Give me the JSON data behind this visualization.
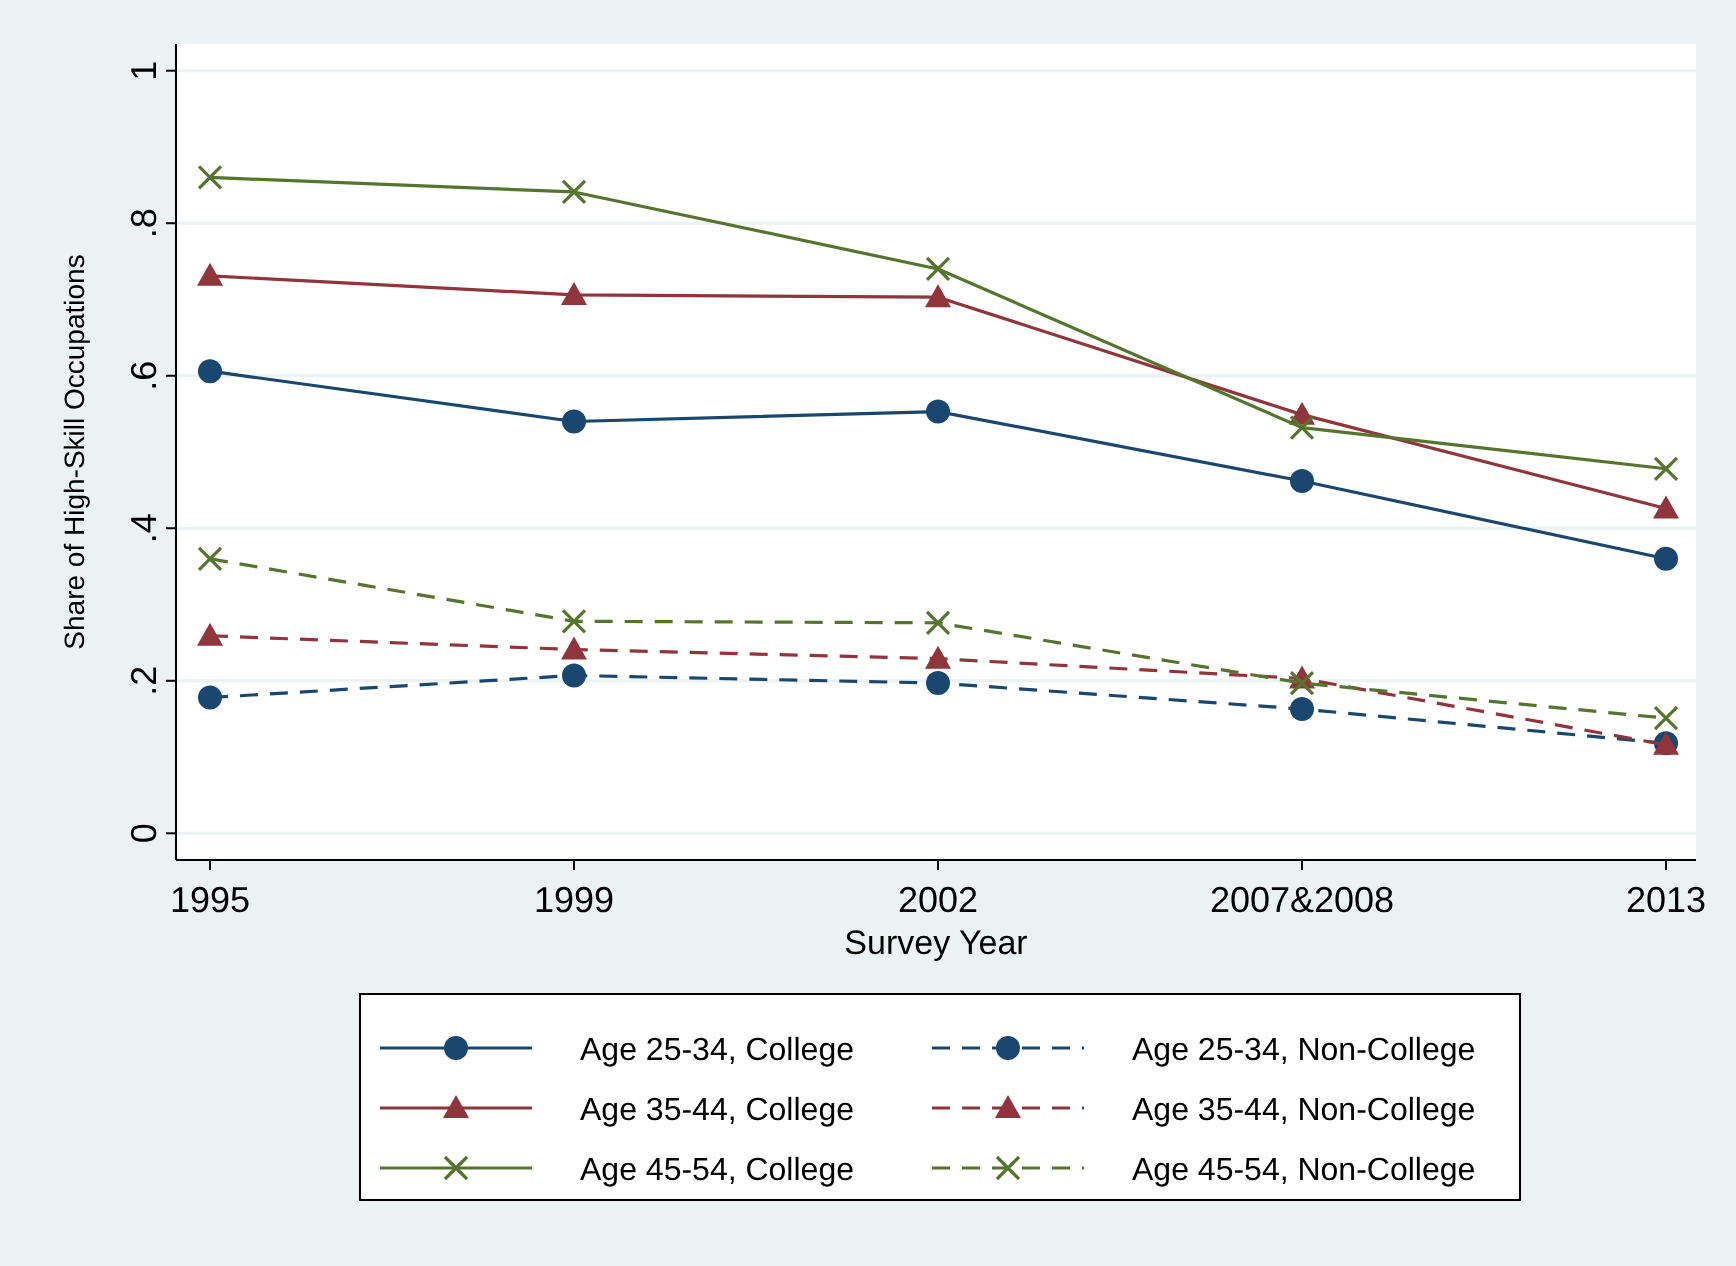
{
  "chart_data": {
    "type": "line",
    "xlabel": "Survey Year",
    "ylabel": "Share of High-Skill Occupations",
    "categories": [
      "1995",
      "1999",
      "2002",
      "2007&2008",
      "2013"
    ],
    "ylim": [
      -0.035,
      1.035
    ],
    "yticks": [
      {
        "value": 0,
        "label": "0"
      },
      {
        "value": 0.2,
        "label": ".2"
      },
      {
        "value": 0.4,
        "label": ".4"
      },
      {
        "value": 0.6,
        "label": ".6"
      },
      {
        "value": 0.8,
        "label": ".8"
      },
      {
        "value": 1,
        "label": "1"
      }
    ],
    "grid": "y",
    "legend": "bottom",
    "series": [
      {
        "name": "Age 25-34, College",
        "color": "#1a476f",
        "marker": "circle",
        "line_style": "solid",
        "values": [
          0.606,
          0.54,
          0.553,
          0.462,
          0.36
        ]
      },
      {
        "name": "Age 25-34, Non-College",
        "color": "#1a476f",
        "marker": "circle",
        "line_style": "dashed",
        "values": [
          0.178,
          0.207,
          0.197,
          0.163,
          0.118
        ]
      },
      {
        "name": "Age 35-44, College",
        "color": "#90353b",
        "marker": "triangle",
        "line_style": "solid",
        "values": [
          0.731,
          0.706,
          0.703,
          0.549,
          0.426
        ]
      },
      {
        "name": "Age 35-44, Non-College",
        "color": "#90353b",
        "marker": "triangle",
        "line_style": "dashed",
        "values": [
          0.259,
          0.241,
          0.229,
          0.203,
          0.116
        ]
      },
      {
        "name": "Age 45-54, College",
        "color": "#55752f",
        "marker": "cross",
        "line_style": "solid",
        "values": [
          0.86,
          0.841,
          0.74,
          0.532,
          0.478
        ]
      },
      {
        "name": "Age 45-54, Non-College",
        "color": "#55752f",
        "marker": "cross",
        "line_style": "dashed",
        "values": [
          0.36,
          0.278,
          0.276,
          0.197,
          0.151
        ]
      }
    ]
  }
}
